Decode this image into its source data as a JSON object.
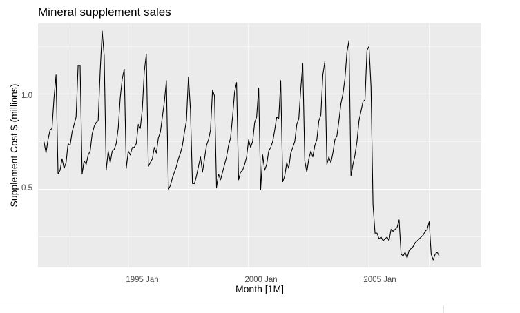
{
  "chart_data": {
    "type": "line",
    "title": "Mineral supplement sales",
    "xlabel": "Month [1M]",
    "ylabel": "Supplement Cost $ (millions)",
    "x_ticks": [
      "1995 Jan",
      "2000 Jan",
      "2005 Jan"
    ],
    "y_ticks": [
      "0.5",
      "1.0"
    ],
    "xlim": [
      "1991 Apr",
      "2009 Sep"
    ],
    "ylim": [
      0.09,
      1.37
    ],
    "grid": true,
    "colors": {
      "panel": "#ebebeb",
      "grid": "#ffffff",
      "line": "#000000"
    },
    "series": [
      {
        "start": "1991 Jul",
        "frequency": "monthly",
        "values": [
          0.75,
          0.69,
          0.76,
          0.81,
          0.82,
          0.98,
          1.1,
          0.58,
          0.6,
          0.66,
          0.61,
          0.64,
          0.74,
          0.73,
          0.8,
          0.84,
          0.88,
          1.15,
          1.15,
          0.58,
          0.65,
          0.63,
          0.68,
          0.7,
          0.79,
          0.83,
          0.85,
          0.86,
          1.12,
          1.33,
          1.2,
          0.6,
          0.7,
          0.64,
          0.7,
          0.71,
          0.74,
          0.82,
          0.98,
          1.08,
          1.13,
          0.61,
          0.7,
          0.68,
          0.72,
          0.72,
          0.74,
          0.84,
          0.82,
          0.92,
          1.12,
          1.21,
          0.62,
          0.64,
          0.66,
          0.72,
          0.69,
          0.77,
          0.8,
          0.88,
          0.96,
          1.07,
          0.5,
          0.52,
          0.56,
          0.59,
          0.62,
          0.66,
          0.69,
          0.73,
          0.8,
          0.86,
          1.09,
          0.92,
          0.53,
          0.53,
          0.57,
          0.62,
          0.67,
          0.59,
          0.66,
          0.73,
          0.76,
          0.81,
          1.02,
          0.99,
          0.51,
          0.58,
          0.55,
          0.59,
          0.63,
          0.67,
          0.73,
          0.77,
          0.88,
          1.01,
          1.06,
          0.55,
          0.59,
          0.6,
          0.63,
          0.67,
          0.76,
          0.72,
          0.75,
          0.85,
          0.88,
          1.03,
          0.5,
          0.68,
          0.6,
          0.63,
          0.7,
          0.72,
          0.75,
          0.81,
          0.88,
          0.87,
          1.07,
          0.54,
          0.57,
          0.64,
          0.61,
          0.69,
          0.72,
          0.75,
          0.84,
          0.87,
          1.03,
          1.16,
          0.65,
          0.59,
          0.66,
          0.7,
          0.67,
          0.73,
          0.76,
          0.86,
          0.89,
          1.1,
          1.17,
          0.63,
          0.67,
          0.64,
          0.69,
          0.76,
          0.78,
          0.86,
          0.95,
          1.0,
          1.08,
          1.22,
          1.28,
          0.57,
          0.63,
          0.68,
          0.75,
          0.86,
          0.91,
          0.96,
          0.97,
          1.23,
          1.25,
          1.04,
          0.42,
          0.27,
          0.27,
          0.24,
          0.25,
          0.23,
          0.24,
          0.25,
          0.23,
          0.29,
          0.28,
          0.29,
          0.3,
          0.34,
          0.16,
          0.15,
          0.17,
          0.14,
          0.18,
          0.19,
          0.2,
          0.22,
          0.23,
          0.24,
          0.25,
          0.26,
          0.28,
          0.29,
          0.33,
          0.16,
          0.13,
          0.16,
          0.17,
          0.15
        ]
      }
    ]
  }
}
